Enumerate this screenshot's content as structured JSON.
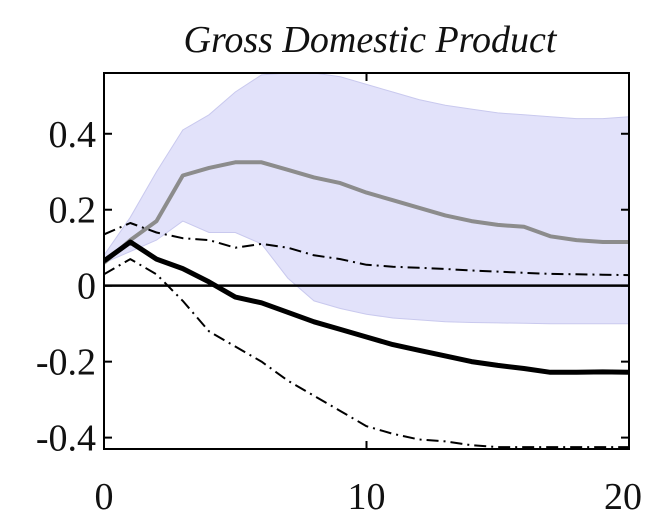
{
  "chart_data": {
    "type": "line",
    "title": "Gross Domestic Product",
    "xlabel": "",
    "ylabel": "",
    "xlim": [
      0,
      20
    ],
    "ylim": [
      -0.43,
      0.56
    ],
    "xticks": [
      0,
      10,
      20
    ],
    "xtick_labels": [
      "0",
      "10",
      "20"
    ],
    "yticks": [
      0.4,
      0.2,
      0,
      -0.2,
      -0.4
    ],
    "ytick_labels": [
      "0.4",
      "0.2",
      "0",
      "-0.2",
      "-0.4"
    ],
    "grid": false,
    "legend": "none",
    "x": [
      0,
      1,
      2,
      3,
      4,
      5,
      6,
      7,
      8,
      9,
      10,
      11,
      12,
      13,
      14,
      15,
      16,
      17,
      18,
      19,
      20
    ],
    "band": {
      "color": "#e2e2fa",
      "edge_color": "#c9c9ee",
      "upper": [
        0.08,
        0.18,
        0.3,
        0.41,
        0.45,
        0.51,
        0.555,
        0.56,
        0.56,
        0.55,
        0.53,
        0.51,
        0.49,
        0.475,
        0.465,
        0.455,
        0.45,
        0.445,
        0.44,
        0.44,
        0.445
      ],
      "lower": [
        0.06,
        0.09,
        0.12,
        0.17,
        0.14,
        0.14,
        0.11,
        0.02,
        -0.04,
        -0.06,
        -0.075,
        -0.085,
        -0.09,
        -0.095,
        -0.097,
        -0.098,
        -0.099,
        -0.1,
        -0.1,
        -0.1,
        -0.1
      ]
    },
    "series": [
      {
        "style": "gray-solid",
        "color": "#8c8c8c",
        "values": [
          0.06,
          0.12,
          0.17,
          0.29,
          0.31,
          0.325,
          0.325,
          0.305,
          0.285,
          0.27,
          0.245,
          0.225,
          0.205,
          0.185,
          0.17,
          0.16,
          0.155,
          0.13,
          0.12,
          0.115,
          0.115
        ]
      },
      {
        "style": "black-solid",
        "color": "#000000",
        "values": [
          0.065,
          0.115,
          0.07,
          0.045,
          0.01,
          -0.03,
          -0.045,
          -0.07,
          -0.095,
          -0.115,
          -0.135,
          -0.155,
          -0.17,
          -0.185,
          -0.2,
          -0.21,
          -0.218,
          -0.228,
          -0.228,
          -0.227,
          -0.228
        ]
      },
      {
        "style": "dash-dot-upper",
        "color": "#000000",
        "values": [
          0.135,
          0.165,
          0.14,
          0.125,
          0.12,
          0.1,
          0.11,
          0.1,
          0.08,
          0.07,
          0.055,
          0.05,
          0.047,
          0.044,
          0.04,
          0.037,
          0.034,
          0.031,
          0.03,
          0.029,
          0.028
        ]
      },
      {
        "style": "dash-dot-lower",
        "color": "#000000",
        "values": [
          0.03,
          0.07,
          0.03,
          -0.04,
          -0.12,
          -0.16,
          -0.2,
          -0.25,
          -0.29,
          -0.33,
          -0.37,
          -0.39,
          -0.405,
          -0.41,
          -0.42,
          -0.425,
          -0.425,
          -0.425,
          -0.425,
          -0.425,
          -0.425
        ]
      }
    ],
    "reference_line": {
      "y": 0,
      "color": "#000000"
    }
  }
}
